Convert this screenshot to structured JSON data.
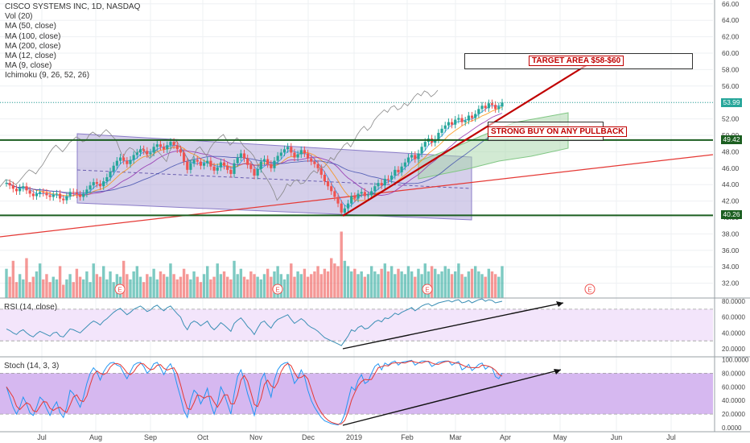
{
  "header": {
    "title": "CISCO SYSTEMS INC, 1D, NASDAQ",
    "indicators": [
      "Vol (20)",
      "MA (50, close)",
      "MA (100, close)",
      "MA (200, close)",
      "MA (12, close)",
      "MA (9, close)",
      "Ichimoku (9, 26, 52, 26)"
    ]
  },
  "annotations": {
    "target": "TARGET AREA $58-$60",
    "buy": "STRONG BUY ON ANY PULLBACK",
    "earnings_marker": "E"
  },
  "panes": {
    "rsi_label": "RSI (14, close)",
    "stoch_label": "Stoch (14, 3, 3)"
  },
  "price_tags": {
    "last": "53.99",
    "support_upper": "49.42",
    "support_lower": "40.26"
  },
  "colors": {
    "up_candle": "#26a69a",
    "down_candle": "#ef5350",
    "trend_line": "#c00000",
    "support_line": "#1b5e20",
    "channel_fill": "#b3a8d9",
    "rsi_fill": "#f3e5fb",
    "stoch_fill": "#d6b8f0",
    "last_price": "#26a69a"
  },
  "chart_data": [
    {
      "type": "candlestick",
      "title": "CISCO SYSTEMS INC, 1D, NASDAQ",
      "x_ticks": [
        "Jul",
        "Aug",
        "Sep",
        "Oct",
        "Nov",
        "Dec",
        "2019",
        "Feb",
        "Mar",
        "Apr",
        "May",
        "Jun",
        "Jul"
      ],
      "ylim": [
        29.5,
        66.5
      ],
      "y_ticks": [
        32,
        34,
        36,
        38,
        40,
        42,
        44,
        46,
        48,
        50,
        52,
        54,
        56,
        58,
        60,
        62,
        64,
        66
      ],
      "y_tick_labels": [
        "32.00",
        "34.00",
        "36.00",
        "38.00",
        "40.00",
        "42.00",
        "44.00",
        "46.00",
        "48.00",
        "50.00",
        "52.00",
        "54.00",
        "56.00",
        "58.00",
        "60.00",
        "62.00",
        "64.00",
        "66.00"
      ],
      "close_series": [
        44.2,
        43.9,
        43.5,
        43.2,
        43.6,
        43.8,
        43.3,
        42.9,
        42.6,
        42.9,
        43.1,
        43.0,
        42.7,
        42.5,
        42.8,
        42.9,
        42.3,
        42.1,
        42.6,
        43.1,
        43.0,
        42.8,
        42.5,
        42.9,
        43.4,
        43.9,
        44.3,
        44.1,
        43.8,
        44.4,
        44.9,
        45.6,
        46.3,
        46.9,
        47.3,
        46.9,
        46.5,
        47.0,
        47.6,
        47.9,
        48.3,
        48.1,
        47.7,
        47.9,
        48.6,
        48.9,
        48.6,
        48.3,
        48.8,
        49.2,
        48.8,
        48.3,
        47.9,
        46.8,
        45.8,
        46.6,
        47.0,
        46.8,
        46.3,
        46.6,
        46.9,
        46.2,
        45.7,
        46.1,
        46.7,
        46.3,
        45.8,
        45.3,
        46.6,
        47.3,
        47.8,
        47.2,
        46.4,
        45.9,
        45.1,
        45.9,
        46.8,
        47.1,
        46.5,
        46.0,
        46.9,
        47.5,
        47.9,
        48.3,
        48.6,
        47.9,
        47.3,
        47.7,
        48.2,
        47.8,
        47.2,
        46.8,
        46.5,
        46.0,
        45.2,
        44.4,
        43.8,
        43.2,
        42.5,
        41.7,
        40.6,
        41.1,
        41.7,
        42.6,
        42.3,
        42.9,
        43.1,
        42.6,
        42.7,
        43.2,
        43.8,
        44.2,
        43.9,
        44.7,
        44.6,
        45.1,
        45.8,
        45.5,
        46.2,
        46.7,
        47.3,
        47.6,
        47.1,
        47.8,
        48.6,
        49.2,
        49.6,
        49.1,
        49.5,
        50.3,
        50.8,
        51.2,
        51.6,
        51.3,
        51.9,
        52.1,
        51.6,
        51.8,
        52.4,
        52.1,
        52.6,
        53.2,
        53.6,
        53.3,
        53.9,
        53.7,
        53.2,
        53.5,
        53.99
      ],
      "support_lines": [
        49.42,
        40.26
      ],
      "last_price": 53.99,
      "target_range": [
        58,
        60
      ]
    },
    {
      "type": "bar",
      "title": "Vol (20)",
      "values": [
        11,
        8,
        14,
        6,
        9,
        7,
        15,
        6,
        8,
        10,
        13,
        7,
        9,
        6,
        8,
        7,
        12,
        5,
        7,
        9,
        6,
        11,
        8,
        7,
        10,
        6,
        13,
        9,
        8,
        12,
        7,
        10,
        6,
        9,
        8,
        14,
        9,
        7,
        10,
        12,
        8,
        6,
        9,
        8,
        11,
        7,
        10,
        9,
        8,
        13,
        9,
        7,
        8,
        11,
        9,
        7,
        10,
        8,
        6,
        9,
        12,
        7,
        8,
        13,
        9,
        10,
        8,
        7,
        14,
        9,
        11,
        8,
        7,
        10,
        9,
        8,
        7,
        9,
        11,
        8,
        10,
        12,
        9,
        7,
        9,
        13,
        8,
        10,
        9,
        11,
        8,
        9,
        10,
        12,
        9,
        11,
        10,
        15,
        13,
        12,
        25,
        14,
        12,
        10,
        11,
        9,
        10,
        8,
        9,
        12,
        10,
        9,
        11,
        13,
        10,
        12,
        9,
        11,
        10,
        9,
        12,
        10,
        8,
        11,
        9,
        13,
        10,
        12,
        11,
        9,
        10,
        12,
        11,
        9,
        10,
        13,
        9,
        8,
        10,
        11,
        12,
        10,
        9,
        8,
        11,
        10,
        9,
        8,
        12
      ],
      "markers": [
        "E",
        "E",
        "E",
        "E"
      ]
    },
    {
      "type": "line",
      "title": "RSI (14, close)",
      "y_ticks": [
        20,
        40,
        60,
        80
      ],
      "y_tick_labels": [
        "20.0000",
        "40.0000",
        "60.0000",
        "80.0000"
      ],
      "bands": [
        70,
        30
      ],
      "values": [
        45,
        43,
        40,
        38,
        42,
        44,
        40,
        37,
        35,
        39,
        42,
        40,
        38,
        36,
        40,
        41,
        36,
        35,
        40,
        45,
        44,
        42,
        40,
        44,
        48,
        52,
        55,
        53,
        50,
        55,
        58,
        62,
        66,
        69,
        71,
        67,
        63,
        66,
        70,
        72,
        74,
        71,
        67,
        69,
        73,
        75,
        71,
        68,
        72,
        74,
        69,
        64,
        60,
        50,
        44,
        52,
        55,
        53,
        49,
        52,
        55,
        48,
        44,
        48,
        53,
        50,
        46,
        42,
        52,
        56,
        59,
        54,
        48,
        44,
        38,
        46,
        53,
        55,
        50,
        46,
        53,
        57,
        59,
        61,
        63,
        57,
        52,
        55,
        58,
        55,
        50,
        47,
        45,
        42,
        38,
        34,
        32,
        30,
        28,
        26,
        24,
        30,
        36,
        44,
        42,
        47,
        49,
        45,
        46,
        50,
        54,
        56,
        54,
        59,
        58,
        61,
        65,
        63,
        66,
        68,
        70,
        72,
        68,
        71,
        74,
        76,
        77,
        74,
        76,
        78,
        79,
        80,
        81,
        79,
        81,
        82,
        78,
        79,
        81,
        78,
        80,
        82,
        83,
        80,
        82,
        81,
        78,
        79,
        80
      ]
    },
    {
      "type": "line",
      "title": "Stoch (14, 3, 3)",
      "y_ticks": [
        0,
        20,
        40,
        60,
        80,
        100
      ],
      "y_tick_labels": [
        "0.0000",
        "20.0000",
        "40.0000",
        "60.0000",
        "80.0000",
        "100.0000"
      ],
      "bands": [
        80,
        20
      ],
      "values": [
        60,
        45,
        30,
        20,
        30,
        45,
        35,
        22,
        18,
        30,
        45,
        40,
        28,
        18,
        30,
        38,
        22,
        15,
        30,
        55,
        50,
        40,
        30,
        45,
        65,
        80,
        88,
        82,
        70,
        82,
        90,
        95,
        96,
        92,
        90,
        80,
        72,
        82,
        92,
        95,
        96,
        90,
        80,
        85,
        94,
        96,
        88,
        78,
        88,
        94,
        82,
        62,
        45,
        25,
        15,
        40,
        55,
        50,
        35,
        45,
        58,
        35,
        20,
        35,
        60,
        50,
        35,
        20,
        50,
        75,
        85,
        70,
        50,
        35,
        18,
        40,
        70,
        80,
        60,
        45,
        70,
        85,
        92,
        95,
        96,
        82,
        65,
        72,
        85,
        75,
        55,
        40,
        30,
        22,
        15,
        10,
        8,
        6,
        5,
        4,
        8,
        20,
        40,
        60,
        55,
        70,
        78,
        65,
        68,
        80,
        90,
        94,
        85,
        95,
        92,
        96,
        98,
        92,
        96,
        97,
        98,
        99,
        92,
        95,
        98,
        98,
        97,
        90,
        93,
        96,
        97,
        98,
        98,
        92,
        95,
        97,
        85,
        88,
        93,
        84,
        88,
        93,
        95,
        86,
        90,
        88,
        75,
        72,
        80
      ]
    }
  ]
}
